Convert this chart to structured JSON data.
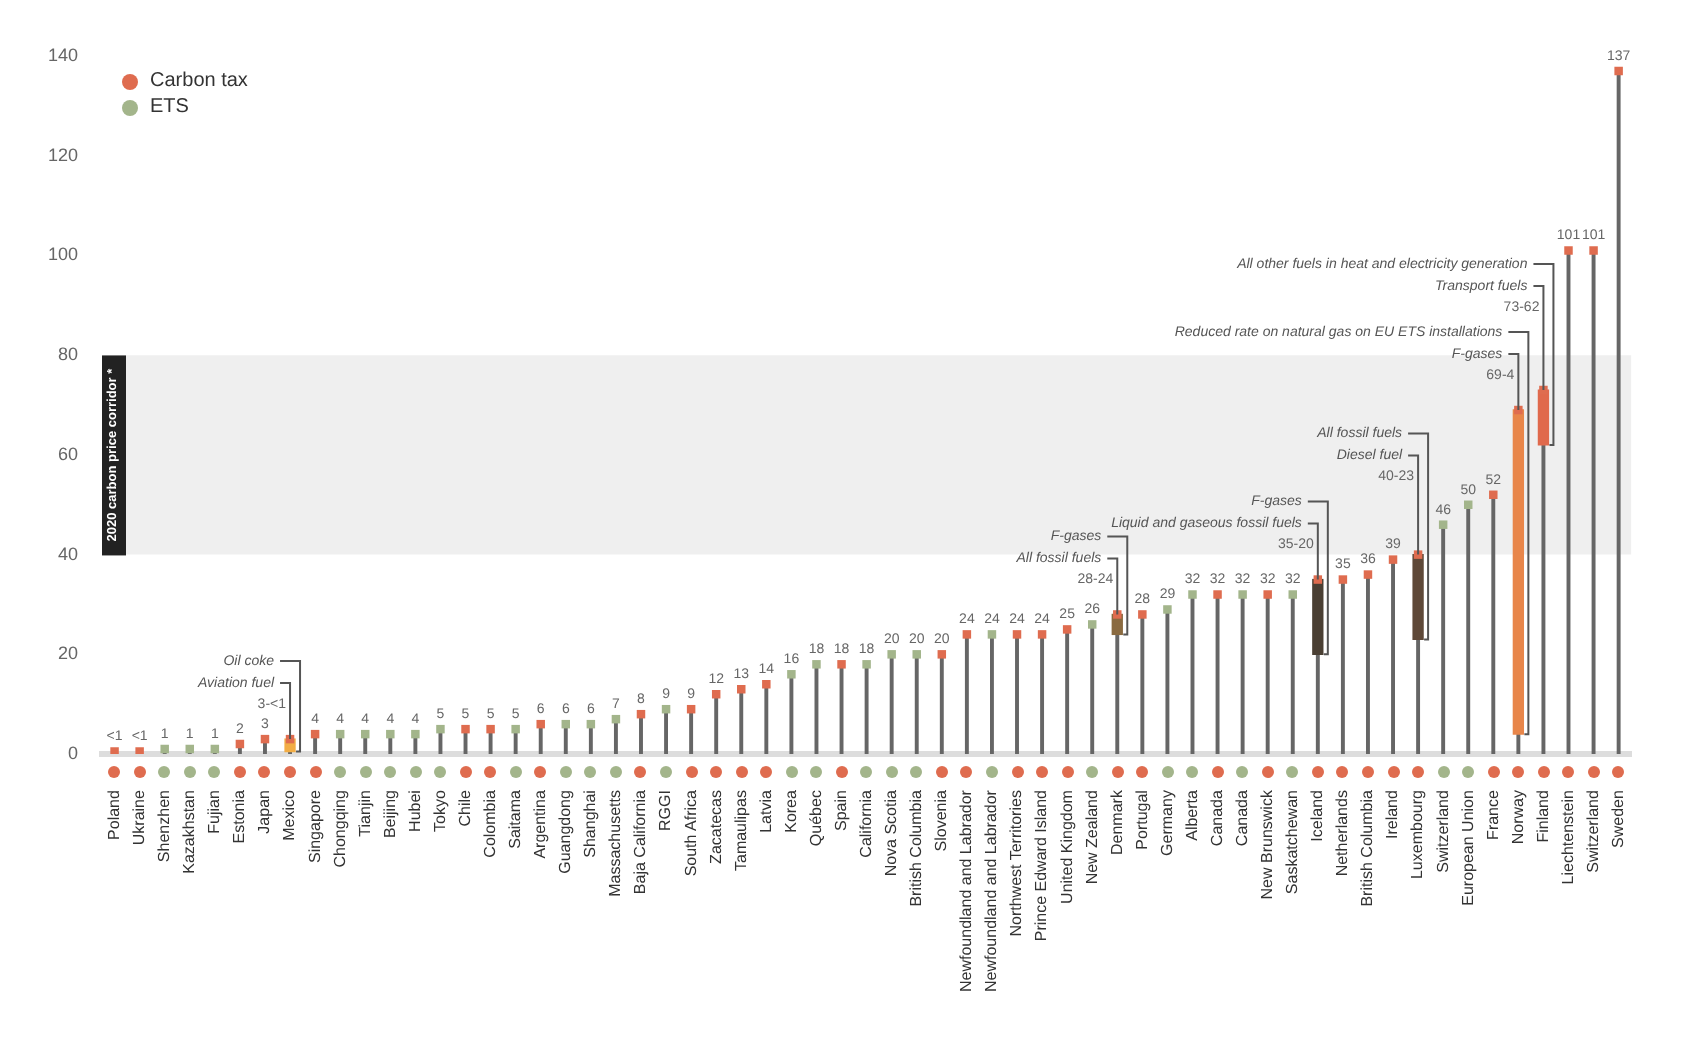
{
  "chart_data": {
    "type": "lollipop",
    "categories": [
      "Poland",
      "Ukraine",
      "Shenzhen",
      "Kazakhstan",
      "Fujian",
      "Estonia",
      "Japan",
      "Mexico",
      "Singapore",
      "Chongqing",
      "Tianjin",
      "Beijing",
      "Hubei",
      "Tokyo",
      "Chile",
      "Colombia",
      "Saitama",
      "Argentina",
      "Guangdong",
      "Shanghai",
      "Massachusetts",
      "Baja California",
      "RGGI",
      "South Africa",
      "Zacatecas",
      "Tamaulipas",
      "Latvia",
      "Korea",
      "Québec",
      "Spain",
      "California",
      "Nova Scotia",
      "British Columbia",
      "Slovenia",
      "Newfoundland and Labrador",
      "Newfoundland and Labrador",
      "Northwest Territories",
      "Prince Edward Island",
      "United Kingdom",
      "New Zealand",
      "Denmark",
      "Portugal",
      "Germany",
      "Alberta",
      "Canada",
      "Canada",
      "New Brunswick",
      "Saskatchewan",
      "Iceland",
      "Netherlands",
      "British Columbia",
      "Ireland",
      "Luxembourg",
      "Switzerland",
      "European Union",
      "France",
      "Norway",
      "Finland",
      "Liechtenstein",
      "Switzerland",
      "Sweden"
    ],
    "series": [
      {
        "name": "Carbon tax",
        "color": "#df6c4f",
        "values": [
          0.5,
          0.5,
          null,
          null,
          null,
          2,
          3,
          3,
          4,
          null,
          null,
          null,
          null,
          null,
          5,
          5,
          null,
          6,
          null,
          null,
          null,
          8,
          null,
          9,
          12,
          13,
          14,
          null,
          null,
          18,
          null,
          null,
          null,
          20,
          24,
          null,
          24,
          24,
          25,
          null,
          28,
          28,
          null,
          null,
          32,
          null,
          32,
          null,
          35,
          35,
          36,
          39,
          40,
          null,
          null,
          52,
          69,
          73,
          101,
          101,
          137
        ],
        "value_labels": [
          "<1",
          "<1",
          null,
          null,
          null,
          "2",
          "3",
          "3-<1",
          "4",
          null,
          null,
          null,
          null,
          null,
          "5",
          "5",
          null,
          "6",
          null,
          null,
          null,
          "8",
          null,
          "9",
          "12",
          "13",
          "14",
          null,
          null,
          "18",
          null,
          null,
          null,
          "20",
          "24",
          null,
          "24",
          "24",
          "25",
          null,
          "28-24",
          "28",
          null,
          null,
          "32",
          null,
          "32",
          null,
          "35-20",
          "35",
          "36",
          "39",
          "40-23",
          null,
          null,
          "52",
          "69-4",
          "73-62",
          "101",
          "101",
          "137"
        ]
      },
      {
        "name": "ETS",
        "color": "#a3b58b",
        "values": [
          null,
          null,
          1,
          1,
          1,
          null,
          null,
          null,
          null,
          4,
          4,
          4,
          4,
          5,
          null,
          null,
          5,
          null,
          6,
          6,
          7,
          null,
          9,
          null,
          null,
          null,
          null,
          16,
          18,
          null,
          18,
          20,
          20,
          null,
          null,
          24,
          null,
          null,
          null,
          26,
          null,
          null,
          29,
          32,
          null,
          32,
          null,
          32,
          null,
          null,
          null,
          null,
          null,
          46,
          50,
          null,
          null,
          null,
          null,
          null,
          null
        ],
        "value_labels": [
          null,
          null,
          "1",
          "1",
          "1",
          null,
          null,
          null,
          null,
          "4",
          "4",
          "4",
          "4",
          "5",
          null,
          null,
          "5",
          null,
          "6",
          "6",
          "7",
          null,
          "9",
          null,
          null,
          null,
          null,
          "16",
          "18",
          null,
          "18",
          "20",
          "20",
          null,
          null,
          "24",
          null,
          null,
          null,
          "26",
          null,
          null,
          "29",
          "32",
          null,
          "32",
          null,
          "32",
          null,
          null,
          null,
          null,
          null,
          "46",
          "50",
          null,
          null,
          null,
          null,
          null,
          null
        ]
      },
      {
        "type": "bar",
        "base": [
          null,
          null,
          null,
          null,
          null,
          null,
          null,
          0.5,
          null,
          null,
          null,
          null,
          null,
          null,
          null,
          null,
          null,
          null,
          null,
          null,
          null,
          null,
          null,
          null,
          null,
          null,
          null,
          null,
          null,
          null,
          null,
          null,
          null,
          null,
          null,
          null,
          null,
          null,
          null,
          null,
          24,
          null,
          null,
          null,
          null,
          null,
          null,
          null,
          20,
          null,
          null,
          null,
          23,
          null,
          null,
          null,
          4,
          62,
          null,
          null,
          null
        ],
        "values": [
          null,
          null,
          null,
          null,
          null,
          null,
          null,
          2.5,
          null,
          null,
          null,
          null,
          null,
          null,
          null,
          null,
          null,
          null,
          null,
          null,
          null,
          null,
          null,
          null,
          null,
          null,
          null,
          null,
          null,
          null,
          null,
          null,
          null,
          null,
          null,
          null,
          null,
          null,
          null,
          null,
          4,
          null,
          null,
          null,
          null,
          null,
          null,
          null,
          15,
          null,
          null,
          null,
          17,
          null,
          null,
          null,
          65,
          11,
          null,
          null,
          null
        ],
        "colors": [
          null,
          null,
          null,
          null,
          null,
          null,
          null,
          "#f2ad45",
          null,
          null,
          null,
          null,
          null,
          null,
          null,
          null,
          null,
          null,
          null,
          null,
          null,
          null,
          null,
          null,
          null,
          null,
          null,
          null,
          null,
          null,
          null,
          null,
          null,
          null,
          null,
          null,
          null,
          null,
          null,
          null,
          "#8a6a40",
          null,
          null,
          null,
          null,
          null,
          null,
          null,
          "#4a3f33",
          null,
          null,
          null,
          "#5e4838",
          null,
          null,
          null,
          "#e8864a",
          "#e0694c",
          null,
          null,
          null
        ]
      }
    ],
    "ylim": [
      0,
      140
    ],
    "yticks": [
      0,
      20,
      40,
      60,
      80,
      100,
      120,
      140
    ],
    "grid": false,
    "legend": "top left",
    "marker": "square",
    "bands": [
      {
        "axis": "y",
        "from": 40,
        "to": 80,
        "label": "2020 carbon price corridor *",
        "color": "#efefef"
      }
    ],
    "annotations": [
      {
        "text": "Aviation fuel",
        "x": "Mexico",
        "y": 3
      },
      {
        "text": "Oil coke",
        "x": "Mexico",
        "y": 0.5
      },
      {
        "text": "All fossil fuels",
        "x": "Denmark",
        "y": 28
      },
      {
        "text": "F-gases",
        "x": "Denmark",
        "y": 24
      },
      {
        "text": "Liquid and gaseous fossil fuels",
        "x": "Iceland",
        "y": 35
      },
      {
        "text": "F-gases",
        "x": "Iceland",
        "y": 20
      },
      {
        "text": "Diesel fuel",
        "x": "Luxembourg",
        "y": 40
      },
      {
        "text": "All fossil fuels",
        "x": "Luxembourg",
        "y": 23
      },
      {
        "text": "F-gases",
        "x": "Norway",
        "y": 69
      },
      {
        "text": "Reduced rate on natural gas on EU ETS installations",
        "x": "Norway",
        "y": 4
      },
      {
        "text": "Transport fuels",
        "x": "Finland",
        "y": 73
      },
      {
        "text": "All other fuels in heat and electricity generation",
        "x": "Finland",
        "y": 62
      }
    ]
  }
}
